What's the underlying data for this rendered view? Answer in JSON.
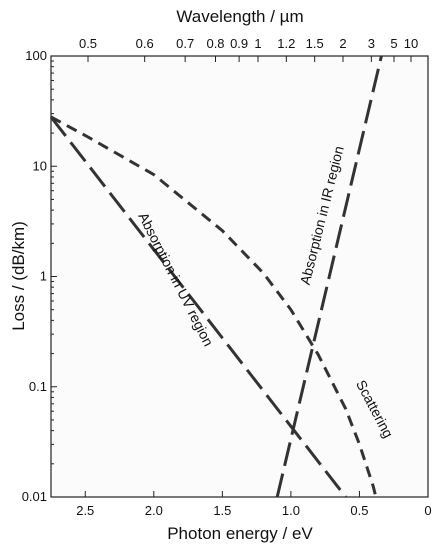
{
  "chart_data": {
    "type": "line",
    "title": "",
    "xlabel": "Photon energy / eV",
    "ylabel": "Loss / (dB/km)",
    "x2label": "Wavelength / µm",
    "x_reversed": true,
    "xlim": [
      2.75,
      0
    ],
    "ylim": [
      0.01,
      100
    ],
    "y_scale": "log",
    "grid": false,
    "x_ticks": [
      2.5,
      2.0,
      1.5,
      1.0,
      0.5,
      0
    ],
    "x_tick_labels": [
      "2.5",
      "2.0",
      "1.5",
      "1.0",
      "0.5",
      "0"
    ],
    "y_ticks": [
      0.01,
      0.1,
      1,
      10,
      100
    ],
    "y_tick_labels": [
      "0.01",
      "0.1",
      "1",
      "10",
      "100"
    ],
    "top_ticks_um": [
      0.5,
      0.6,
      0.7,
      0.8,
      0.9,
      1,
      1.2,
      1.5,
      2,
      3,
      5,
      10
    ],
    "top_tick_labels": [
      "0.5",
      "0.6",
      "0.7",
      "0.8",
      "0.9",
      "1",
      "1.2",
      "1.5",
      "2",
      "3",
      "5",
      "10"
    ],
    "series": [
      {
        "name": "Absorption in UV region",
        "dash": "long",
        "x": [
          2.75,
          0.6
        ],
        "y": [
          28,
          0.01
        ]
      },
      {
        "name": "Scattering",
        "dash": "short",
        "x": [
          2.75,
          2.5,
          2.0,
          1.5,
          1.2,
          1.0,
          0.8,
          0.6,
          0.5,
          0.4,
          0.38
        ],
        "y": [
          28,
          19,
          8.4,
          2.6,
          1.07,
          0.5,
          0.195,
          0.063,
          0.03,
          0.0125,
          0.01
        ]
      },
      {
        "name": "Absorption in IR region",
        "dash": "long",
        "x": [
          1.1,
          0.34
        ],
        "y": [
          0.01,
          100
        ]
      }
    ],
    "annotations": [
      {
        "text": "Absorption in UV region",
        "x": 1.87,
        "y": 0.9,
        "angle": 63
      },
      {
        "text": "Absorption in IR region",
        "x": 0.74,
        "y": 3.5,
        "angle": -76
      },
      {
        "text": "Scattering",
        "x": 0.42,
        "y": 0.06,
        "angle": 62
      }
    ]
  }
}
